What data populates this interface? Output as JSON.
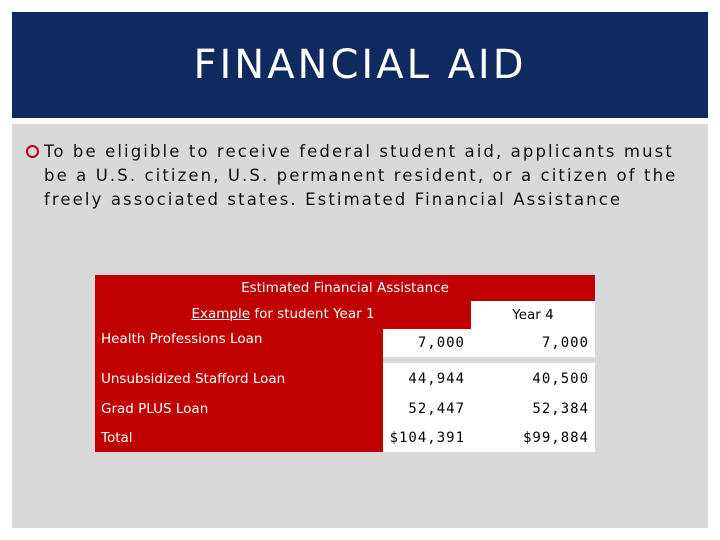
{
  "slide": {
    "title": "FINANCIAL AID",
    "bullet": "To be eligible to receive federal student aid, applicants must be a U.S. citizen, U.S. permanent resident, or a citizen of the freely associated states. Estimated Financial Assistance"
  },
  "table": {
    "title": "Estimated Financial Assistance",
    "subheader_link": "Example",
    "subheader_rest": " for student Year 1",
    "col_year4": "Year 4",
    "rows": [
      {
        "label": "Health Professions Loan",
        "year1": "7,000",
        "year4": "7,000"
      },
      {
        "label": "Unsubsidized Stafford Loan",
        "year1": "44,944",
        "year4": "40,500"
      },
      {
        "label": "Grad PLUS Loan",
        "year1": "52,447",
        "year4": "52,384"
      },
      {
        "label": "Total",
        "year1": "$104,391",
        "year4": "$99,884"
      }
    ]
  },
  "colors": {
    "title_bar": "#0f2a5e",
    "panel": "#d9d9d9",
    "accent_red": "#c00000"
  }
}
